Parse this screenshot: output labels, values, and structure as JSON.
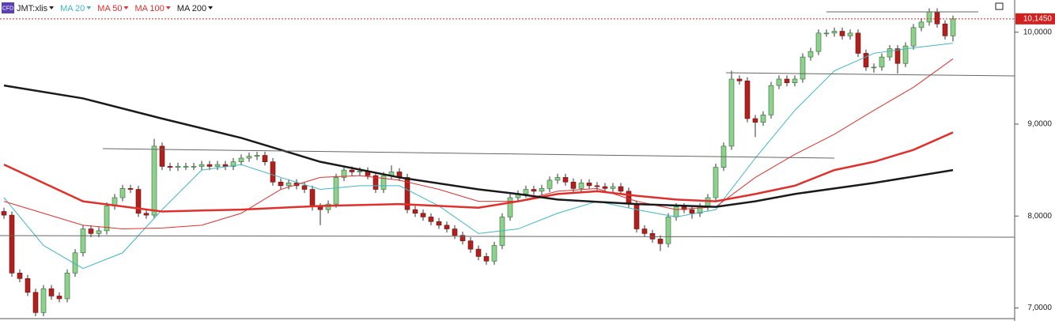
{
  "chart_data": {
    "type": "candlestick",
    "symbol": "JMT:xlis",
    "icon_text": "CFD",
    "ylim": [
      6.91,
      10.35
    ],
    "yticks": [
      {
        "value": 7,
        "label": "7,0000"
      },
      {
        "value": 8,
        "label": "8,0000"
      },
      {
        "value": 9,
        "label": "9,0000"
      },
      {
        "value": 10,
        "label": "10,0000"
      }
    ],
    "last_price": {
      "value": 10.145,
      "label": "10,1450"
    },
    "up_color": "#8fd08f",
    "down_color": "#b0201c",
    "wick_color": "#333333",
    "open": [
      8.05,
      8.01,
      7.38,
      7.32,
      7.17,
      6.95,
      7.21,
      7.13,
      7.1,
      7.38,
      7.6,
      7.86,
      7.81,
      7.84,
      8.11,
      8.2,
      8.3,
      8.29,
      8.03,
      8.01,
      8.76,
      8.54,
      8.53,
      8.54,
      8.54,
      8.54,
      8.56,
      8.54,
      8.56,
      8.54,
      8.59,
      8.63,
      8.65,
      8.66,
      8.59,
      8.37,
      8.33,
      8.36,
      8.33,
      8.29,
      8.1,
      8.07,
      8.13,
      8.42,
      8.5,
      8.48,
      8.49,
      8.44,
      8.29,
      8.44,
      8.48,
      8.42,
      8.07,
      8.03,
      7.99,
      7.94,
      7.9,
      7.86,
      7.79,
      7.73,
      7.64,
      7.56,
      7.51,
      7.68,
      7.99,
      8.2,
      8.24,
      8.29,
      8.27,
      8.3,
      8.39,
      8.42,
      8.37,
      8.3,
      8.36,
      8.33,
      8.32,
      8.3,
      8.32,
      8.27,
      8.13,
      7.86,
      7.81,
      7.75,
      7.7,
      7.99,
      8.1,
      8.07,
      8.03,
      8.1,
      8.2,
      8.53,
      8.76,
      9.49,
      9.47,
      9.06,
      9.02,
      9.1,
      9.42,
      9.49,
      9.45,
      9.49,
      9.73,
      9.79,
      9.99,
      9.99,
      10.01,
      9.96,
      9.99,
      9.77,
      9.62,
      9.62,
      9.73,
      9.82,
      9.66,
      9.85,
      10.05,
      10.11,
      10.22,
      10.09,
      9.96
    ],
    "high": [
      8.09,
      8.05,
      7.42,
      7.36,
      7.21,
      7.25,
      7.25,
      7.17,
      7.42,
      7.64,
      7.9,
      7.9,
      7.88,
      8.15,
      8.24,
      8.34,
      8.34,
      8.33,
      8.07,
      8.84,
      8.8,
      8.58,
      8.58,
      8.58,
      8.58,
      8.6,
      8.6,
      8.6,
      8.6,
      8.63,
      8.67,
      8.69,
      8.7,
      8.7,
      8.63,
      8.41,
      8.4,
      8.4,
      8.37,
      8.33,
      8.14,
      8.17,
      8.46,
      8.54,
      8.54,
      8.53,
      8.53,
      8.48,
      8.48,
      8.55,
      8.52,
      8.46,
      8.11,
      8.07,
      8.03,
      7.98,
      7.94,
      7.9,
      7.83,
      7.77,
      7.68,
      7.6,
      7.72,
      8.03,
      8.24,
      8.28,
      8.33,
      8.33,
      8.34,
      8.43,
      8.46,
      8.46,
      8.41,
      8.4,
      8.4,
      8.37,
      8.36,
      8.36,
      8.36,
      8.31,
      8.17,
      7.9,
      7.85,
      7.79,
      8.03,
      8.14,
      8.14,
      8.11,
      8.14,
      8.24,
      8.57,
      8.8,
      9.58,
      9.53,
      9.51,
      9.1,
      9.14,
      9.46,
      9.53,
      9.53,
      9.53,
      9.77,
      9.83,
      10.03,
      10.03,
      10.05,
      10.05,
      10.03,
      10.03,
      9.81,
      9.66,
      9.77,
      9.86,
      9.86,
      9.89,
      10.09,
      10.15,
      10.26,
      10.26,
      10.13,
      10.18
    ],
    "low": [
      7.97,
      7.34,
      7.28,
      7.13,
      6.91,
      6.91,
      7.09,
      7.06,
      7.06,
      7.34,
      7.56,
      7.77,
      7.77,
      7.8,
      8.07,
      8.16,
      8.25,
      7.99,
      7.97,
      7.97,
      8.5,
      8.49,
      8.49,
      8.5,
      8.5,
      8.5,
      8.5,
      8.5,
      8.5,
      8.5,
      8.55,
      8.59,
      8.61,
      8.55,
      8.33,
      8.29,
      8.29,
      8.29,
      8.25,
      8.06,
      7.9,
      8.03,
      8.09,
      8.38,
      8.44,
      8.44,
      8.4,
      8.25,
      8.25,
      8.4,
      8.38,
      8.03,
      7.99,
      7.95,
      7.9,
      7.86,
      7.82,
      7.75,
      7.69,
      7.6,
      7.52,
      7.47,
      7.47,
      7.64,
      7.95,
      8.16,
      8.2,
      8.23,
      8.23,
      8.26,
      8.35,
      8.33,
      8.26,
      8.26,
      8.29,
      8.28,
      8.26,
      8.26,
      8.23,
      8.09,
      7.82,
      7.77,
      7.71,
      7.62,
      7.66,
      7.95,
      8.03,
      7.97,
      7.99,
      8.06,
      8.16,
      8.49,
      8.72,
      9.43,
      9.02,
      8.86,
      8.98,
      9.06,
      9.38,
      9.41,
      9.41,
      9.45,
      9.69,
      9.75,
      9.95,
      9.95,
      9.92,
      9.92,
      9.73,
      9.58,
      9.56,
      9.58,
      9.69,
      9.55,
      9.62,
      9.81,
      10.01,
      10.07,
      10.05,
      9.92,
      9.9
    ],
    "close": [
      8.01,
      7.38,
      7.32,
      7.17,
      6.95,
      7.21,
      7.13,
      7.1,
      7.38,
      7.6,
      7.86,
      7.81,
      7.84,
      8.11,
      8.2,
      8.3,
      8.29,
      8.03,
      8.01,
      8.76,
      8.54,
      8.53,
      8.54,
      8.54,
      8.54,
      8.56,
      8.54,
      8.56,
      8.54,
      8.59,
      8.63,
      8.65,
      8.66,
      8.59,
      8.37,
      8.33,
      8.36,
      8.33,
      8.29,
      8.1,
      8.07,
      8.13,
      8.42,
      8.5,
      8.48,
      8.49,
      8.44,
      8.29,
      8.44,
      8.48,
      8.42,
      8.07,
      8.03,
      7.99,
      7.94,
      7.9,
      7.86,
      7.79,
      7.73,
      7.64,
      7.56,
      7.51,
      7.68,
      7.99,
      8.2,
      8.24,
      8.29,
      8.27,
      8.3,
      8.39,
      8.42,
      8.37,
      8.3,
      8.36,
      8.33,
      8.32,
      8.3,
      8.32,
      8.27,
      8.13,
      7.86,
      7.81,
      7.75,
      7.7,
      7.99,
      8.1,
      8.07,
      8.03,
      8.1,
      8.2,
      8.53,
      8.76,
      9.49,
      9.47,
      9.06,
      9.02,
      9.1,
      9.42,
      9.49,
      9.45,
      9.49,
      9.73,
      9.79,
      9.99,
      9.99,
      10.01,
      9.96,
      9.99,
      9.77,
      9.62,
      9.62,
      9.73,
      9.82,
      9.66,
      9.85,
      10.05,
      10.11,
      10.22,
      10.09,
      9.96,
      10.145
    ],
    "series": [
      {
        "name": "MA 20",
        "color": "#3fb6c6",
        "width": 1,
        "x": [
          0,
          5,
          10,
          15,
          20,
          25,
          30,
          35,
          40,
          45,
          50,
          55,
          60,
          65,
          70,
          75,
          80,
          85,
          90,
          95,
          100,
          105,
          110,
          115,
          120
        ],
        "values": [
          8.2,
          7.68,
          7.43,
          7.6,
          8.07,
          8.5,
          8.56,
          8.42,
          8.29,
          8.33,
          8.33,
          8.11,
          7.81,
          7.86,
          8.03,
          8.16,
          8.07,
          7.99,
          8.07,
          8.63,
          9.15,
          9.58,
          9.77,
          9.83,
          9.88
        ]
      },
      {
        "name": "MA 50",
        "color": "#e0302c",
        "width": 1,
        "x": [
          0,
          5,
          10,
          15,
          20,
          25,
          30,
          35,
          40,
          45,
          50,
          55,
          60,
          65,
          70,
          75,
          80,
          85,
          90,
          95,
          100,
          105,
          110,
          115,
          120
        ],
        "values": [
          8.16,
          8.03,
          7.9,
          7.86,
          7.87,
          7.9,
          8.03,
          8.29,
          8.42,
          8.44,
          8.39,
          8.29,
          8.16,
          8.16,
          8.27,
          8.3,
          8.16,
          8.07,
          8.1,
          8.42,
          8.67,
          8.89,
          9.15,
          9.4,
          9.71
        ]
      },
      {
        "name": "MA 100",
        "color": "#e0302c",
        "width": 2.5,
        "x": [
          0,
          10,
          20,
          30,
          40,
          50,
          60,
          65,
          70,
          75,
          80,
          85,
          90,
          95,
          100,
          105,
          110,
          115,
          120
        ],
        "values": [
          8.56,
          8.16,
          8.05,
          8.07,
          8.11,
          8.13,
          8.09,
          8.16,
          8.24,
          8.27,
          8.22,
          8.18,
          8.16,
          8.24,
          8.33,
          8.5,
          8.59,
          8.72,
          8.91
        ]
      },
      {
        "name": "MA 200",
        "color": "#1a1a1a",
        "width": 2.5,
        "x": [
          0,
          10,
          20,
          30,
          40,
          50,
          60,
          65,
          70,
          80,
          90,
          95,
          100,
          110,
          120
        ],
        "values": [
          9.42,
          9.28,
          9.06,
          8.85,
          8.59,
          8.42,
          8.29,
          8.24,
          8.18,
          8.13,
          8.1,
          8.16,
          8.24,
          8.36,
          8.5
        ]
      }
    ]
  }
}
